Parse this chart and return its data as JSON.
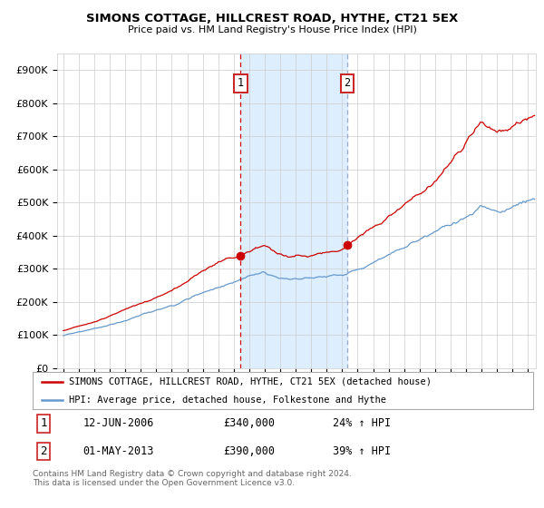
{
  "title": "SIMONS COTTAGE, HILLCREST ROAD, HYTHE, CT21 5EX",
  "subtitle": "Price paid vs. HM Land Registry's House Price Index (HPI)",
  "legend_line1": "SIMONS COTTAGE, HILLCREST ROAD, HYTHE, CT21 5EX (detached house)",
  "legend_line2": "HPI: Average price, detached house, Folkestone and Hythe",
  "event1_date": "12-JUN-2006",
  "event1_price": "£340,000",
  "event1_label": "24% ↑ HPI",
  "event2_date": "01-MAY-2013",
  "event2_price": "£390,000",
  "event2_label": "39% ↑ HPI",
  "event1_x": 2006.45,
  "event2_x": 2013.33,
  "shaded_start": 2006.45,
  "shaded_end": 2013.33,
  "red_color": "#cc0000",
  "blue_color": "#6699cc",
  "shade_color": "#ddeeff",
  "vline1_color": "#cc0000",
  "vline2_color": "#99aacc",
  "ylim": [
    0,
    950000
  ],
  "xlim_start": 1994.6,
  "xlim_end": 2025.5,
  "footer": "Contains HM Land Registry data © Crown copyright and database right 2024.\nThis data is licensed under the Open Government Licence v3.0.",
  "background_color": "#ffffff",
  "grid_color": "#cccccc"
}
